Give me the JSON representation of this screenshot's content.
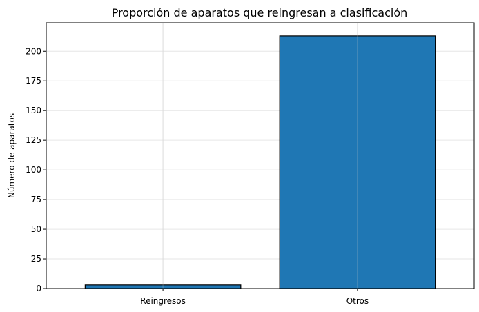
{
  "chart_data": {
    "type": "bar",
    "title": "Proporción de aparatos que reingresan a clasificación",
    "xlabel": "",
    "ylabel": "Número de aparatos",
    "categories": [
      "Reingresos",
      "Otros"
    ],
    "values": [
      3,
      213
    ],
    "ylim": [
      0,
      224
    ],
    "yticks": [
      0,
      25,
      50,
      75,
      100,
      125,
      150,
      175,
      200
    ],
    "grid": true,
    "bar_color": "#1f77b4",
    "edge_color": "#000000"
  }
}
